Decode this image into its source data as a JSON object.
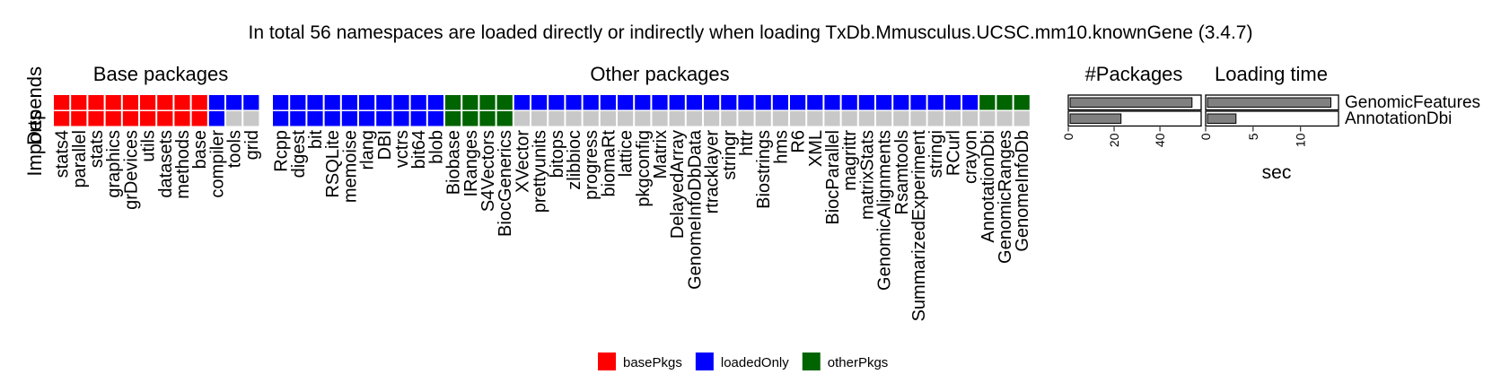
{
  "chart_data": {
    "type": "heatmap",
    "title": "In total 56 namespaces are loaded directly or indirectly when loading TxDb.Mmusculus.UCSC.mm10.knownGene (3.4.7)",
    "ylabel_overlap": [
      "Imports",
      "Depends"
    ],
    "sections": {
      "base": "Base packages",
      "other": "Other packages",
      "npkgs": "#Packages",
      "time": "Loading time"
    },
    "rows": [
      "GenomicFeatures",
      "AnnotationDbi"
    ],
    "colors": {
      "basePkgs": "#ff0000",
      "loadedOnly": "#0000ff",
      "otherPkgs": "#006400",
      "none": "#c8c8c8"
    },
    "base_packages": [
      "stats4",
      "parallel",
      "stats",
      "graphics",
      "grDevices",
      "utils",
      "datasets",
      "methods",
      "base",
      "compiler",
      "tools",
      "grid"
    ],
    "base_matrix": [
      [
        "basePkgs",
        "basePkgs",
        "basePkgs",
        "basePkgs",
        "basePkgs",
        "basePkgs",
        "basePkgs",
        "basePkgs",
        "basePkgs",
        "loadedOnly",
        "loadedOnly",
        "loadedOnly"
      ],
      [
        "basePkgs",
        "basePkgs",
        "basePkgs",
        "basePkgs",
        "basePkgs",
        "basePkgs",
        "basePkgs",
        "basePkgs",
        "basePkgs",
        "loadedOnly",
        "none",
        "none"
      ]
    ],
    "other_packages": [
      "Rcpp",
      "digest",
      "bit",
      "RSQLite",
      "memoise",
      "rlang",
      "DBI",
      "vctrs",
      "bit64",
      "blob",
      "Biobase",
      "IRanges",
      "S4Vectors",
      "BiocGenerics",
      "XVector",
      "prettyunits",
      "bitops",
      "zlibbioc",
      "progress",
      "biomaRt",
      "lattice",
      "pkgconfig",
      "Matrix",
      "DelayedArray",
      "GenomeInfoDbData",
      "rtracklayer",
      "stringr",
      "httr",
      "Biostrings",
      "hms",
      "R6",
      "XML",
      "BiocParallel",
      "magrittr",
      "matrixStats",
      "GenomicAlignments",
      "Rsamtools",
      "SummarizedExperiment",
      "stringi",
      "RCurl",
      "crayon",
      "AnnotationDbi",
      "GenomicRanges",
      "GenomeInfoDb"
    ],
    "other_matrix": [
      [
        "loadedOnly",
        "loadedOnly",
        "loadedOnly",
        "loadedOnly",
        "loadedOnly",
        "loadedOnly",
        "loadedOnly",
        "loadedOnly",
        "loadedOnly",
        "loadedOnly",
        "otherPkgs",
        "otherPkgs",
        "otherPkgs",
        "otherPkgs",
        "loadedOnly",
        "loadedOnly",
        "loadedOnly",
        "loadedOnly",
        "loadedOnly",
        "loadedOnly",
        "loadedOnly",
        "loadedOnly",
        "loadedOnly",
        "loadedOnly",
        "loadedOnly",
        "loadedOnly",
        "loadedOnly",
        "loadedOnly",
        "loadedOnly",
        "loadedOnly",
        "loadedOnly",
        "loadedOnly",
        "loadedOnly",
        "loadedOnly",
        "loadedOnly",
        "loadedOnly",
        "loadedOnly",
        "loadedOnly",
        "loadedOnly",
        "loadedOnly",
        "loadedOnly",
        "otherPkgs",
        "otherPkgs",
        "otherPkgs"
      ],
      [
        "loadedOnly",
        "loadedOnly",
        "loadedOnly",
        "loadedOnly",
        "loadedOnly",
        "loadedOnly",
        "loadedOnly",
        "loadedOnly",
        "loadedOnly",
        "loadedOnly",
        "otherPkgs",
        "otherPkgs",
        "otherPkgs",
        "otherPkgs",
        "none",
        "none",
        "none",
        "none",
        "none",
        "none",
        "none",
        "none",
        "none",
        "none",
        "none",
        "none",
        "none",
        "none",
        "none",
        "none",
        "none",
        "none",
        "none",
        "none",
        "none",
        "none",
        "none",
        "none",
        "none",
        "none",
        "none",
        "none",
        "none",
        "none"
      ]
    ],
    "npackages": {
      "values": [
        54,
        23
      ],
      "xlim": [
        0,
        58
      ],
      "ticks": [
        "0",
        "20",
        "40"
      ],
      "tick_values": [
        0,
        20,
        40
      ]
    },
    "loading_time": {
      "values": [
        13.2,
        3.2
      ],
      "xlim": [
        0,
        14
      ],
      "ticks": [
        "0",
        "5",
        "10"
      ],
      "tick_values": [
        0,
        5,
        10
      ],
      "xlabel": "sec"
    },
    "legend": [
      {
        "key": "basePkgs",
        "label": "basePkgs"
      },
      {
        "key": "loadedOnly",
        "label": "loadedOnly"
      },
      {
        "key": "otherPkgs",
        "label": "otherPkgs"
      }
    ]
  }
}
